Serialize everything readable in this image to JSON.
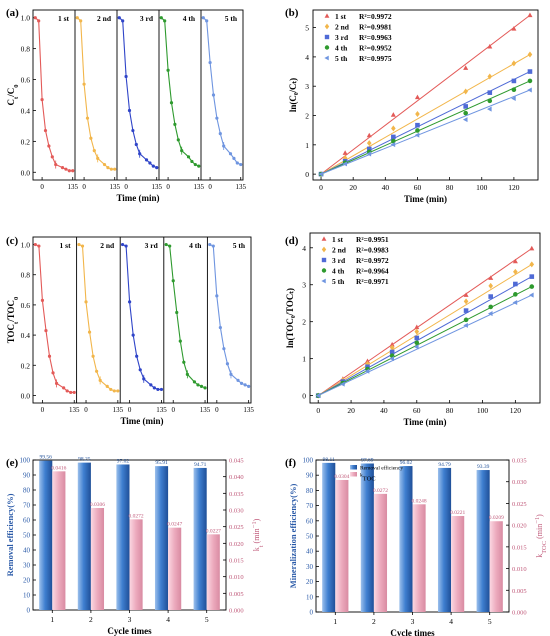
{
  "chart_data": [
    {
      "id": "a",
      "type": "line",
      "panel_label": "(a)",
      "ylabel_parts": [
        "C",
        "t",
        "/C",
        "0"
      ],
      "xlabel": "Time (min)",
      "ylim": [
        -0.05,
        1.05
      ],
      "yticks": [
        "0.0",
        "0.2",
        "0.4",
        "0.6",
        "0.8",
        "1.0"
      ],
      "yticks_vals": [
        0,
        0.2,
        0.4,
        0.6,
        0.8,
        1.0
      ],
      "segment_xticks": [
        "0",
        "135"
      ],
      "x": [
        -30,
        -15,
        0,
        15,
        30,
        45,
        60,
        90,
        105,
        120,
        135
      ],
      "series": [
        {
          "name": "1 st",
          "color": "#e35a58",
          "values": [
            1.0,
            0.98,
            0.47,
            0.27,
            0.17,
            0.1,
            0.05,
            0.03,
            0.02,
            0.01,
            0.01
          ]
        },
        {
          "name": "2 nd",
          "color": "#f2b64b",
          "values": [
            1.0,
            0.98,
            0.57,
            0.35,
            0.22,
            0.14,
            0.09,
            0.05,
            0.03,
            0.02,
            0.02
          ]
        },
        {
          "name": "3 rd",
          "color": "#2f44c8",
          "values": [
            1.0,
            0.98,
            0.62,
            0.4,
            0.27,
            0.18,
            0.12,
            0.08,
            0.06,
            0.04,
            0.03
          ]
        },
        {
          "name": "4 th",
          "color": "#2e9a2e",
          "values": [
            1.0,
            0.98,
            0.66,
            0.45,
            0.31,
            0.21,
            0.14,
            0.1,
            0.07,
            0.05,
            0.04
          ]
        },
        {
          "name": "5 th",
          "color": "#6f95e0",
          "values": [
            1.0,
            0.98,
            0.71,
            0.5,
            0.35,
            0.25,
            0.17,
            0.12,
            0.09,
            0.06,
            0.05
          ]
        }
      ]
    },
    {
      "id": "b",
      "type": "scatter",
      "panel_label": "(b)",
      "ylabel": "ln(C₀/Cₜ)",
      "xlabel": "Time (min)",
      "xlim": [
        -5,
        135
      ],
      "ylim": [
        -0.2,
        5.6
      ],
      "xticks": [
        0,
        20,
        40,
        60,
        80,
        100,
        120
      ],
      "yticks": [
        0,
        1,
        2,
        3,
        4,
        5
      ],
      "x": [
        0,
        15,
        30,
        45,
        60,
        90,
        105,
        120,
        130
      ],
      "legend_position": "top-left",
      "series": [
        {
          "name": "1 st",
          "r2": "R²=0.9972",
          "color": "#e35a58",
          "marker": "triangle-up",
          "values": [
            0,
            0.72,
            1.32,
            2.02,
            2.62,
            3.62,
            4.35,
            4.96,
            5.42
          ]
        },
        {
          "name": "2 nd",
          "r2": "R²=0.9981",
          "color": "#f2b64b",
          "marker": "diamond",
          "values": [
            0,
            0.55,
            1.06,
            1.56,
            2.05,
            2.82,
            3.33,
            3.78,
            4.08
          ]
        },
        {
          "name": "3 rd",
          "r2": "R²=0.9963",
          "color": "#4f6ad6",
          "marker": "square",
          "values": [
            0,
            0.44,
            0.86,
            1.27,
            1.67,
            2.31,
            2.78,
            3.18,
            3.5
          ]
        },
        {
          "name": "4 th",
          "r2": "R²=0.9952",
          "color": "#2e9a2e",
          "marker": "circle",
          "values": [
            0,
            0.39,
            0.76,
            1.13,
            1.49,
            2.08,
            2.5,
            2.88,
            3.18
          ]
        },
        {
          "name": "5 th",
          "r2": "R²=0.9975",
          "color": "#6f95e0",
          "marker": "triangle-left",
          "values": [
            0,
            0.35,
            0.69,
            1.01,
            1.33,
            1.86,
            2.22,
            2.58,
            2.87
          ]
        }
      ]
    },
    {
      "id": "c",
      "type": "line",
      "panel_label": "(c)",
      "ylabel_parts": [
        "TOC",
        "t",
        "/TOC",
        "0"
      ],
      "xlabel": "Time (min)",
      "ylim": [
        -0.05,
        1.05
      ],
      "yticks": [
        "0.0",
        "0.2",
        "0.4",
        "0.6",
        "0.8",
        "1.0"
      ],
      "yticks_vals": [
        0,
        0.2,
        0.4,
        0.6,
        0.8,
        1.0
      ],
      "segment_xticks": [
        "0",
        "135"
      ],
      "x": [
        -30,
        -15,
        0,
        15,
        30,
        45,
        60,
        90,
        105,
        120,
        135
      ],
      "series": [
        {
          "name": "1 st",
          "color": "#e35a58",
          "values": [
            1.0,
            0.99,
            0.63,
            0.43,
            0.26,
            0.15,
            0.08,
            0.05,
            0.03,
            0.02,
            0.02
          ]
        },
        {
          "name": "2 nd",
          "color": "#f2b64b",
          "values": [
            1.0,
            0.99,
            0.62,
            0.42,
            0.26,
            0.16,
            0.1,
            0.06,
            0.04,
            0.03,
            0.03
          ]
        },
        {
          "name": "3 rd",
          "color": "#2f44c8",
          "values": [
            1.0,
            0.99,
            0.62,
            0.4,
            0.26,
            0.17,
            0.11,
            0.07,
            0.05,
            0.04,
            0.04
          ]
        },
        {
          "name": "4 th",
          "color": "#2e9a2e",
          "values": [
            1.0,
            0.99,
            0.76,
            0.55,
            0.36,
            0.22,
            0.14,
            0.09,
            0.07,
            0.06,
            0.05
          ]
        },
        {
          "name": "5 th",
          "color": "#6f95e0",
          "values": [
            1.0,
            0.99,
            0.66,
            0.45,
            0.31,
            0.21,
            0.14,
            0.1,
            0.08,
            0.07,
            0.06
          ]
        }
      ]
    },
    {
      "id": "d",
      "type": "scatter",
      "panel_label": "(d)",
      "ylabel": "ln(TOC₀/TOCₜ)",
      "xlabel": "Time (min)",
      "xlim": [
        -5,
        135
      ],
      "ylim": [
        -0.2,
        4.4
      ],
      "xticks": [
        0,
        20,
        40,
        60,
        80,
        100,
        120
      ],
      "yticks": [
        0,
        1,
        2,
        3,
        4
      ],
      "x": [
        0,
        15,
        30,
        45,
        60,
        90,
        105,
        120,
        130
      ],
      "legend_position": "top-left",
      "series": [
        {
          "name": "1 st",
          "r2": "R²=0.9951",
          "color": "#e35a58",
          "marker": "triangle-up",
          "values": [
            0,
            0.45,
            0.93,
            1.38,
            1.85,
            2.72,
            3.18,
            3.63,
            3.98
          ]
        },
        {
          "name": "2 nd",
          "r2": "R²=0.9983",
          "color": "#f2b64b",
          "marker": "diamond",
          "values": [
            0,
            0.42,
            0.86,
            1.3,
            1.73,
            2.55,
            2.97,
            3.35,
            3.55
          ]
        },
        {
          "name": "3 rd",
          "r2": "R²=0.9972",
          "color": "#4f6ad6",
          "marker": "square",
          "values": [
            0,
            0.38,
            0.78,
            1.18,
            1.56,
            2.3,
            2.68,
            3.02,
            3.22
          ]
        },
        {
          "name": "4 th",
          "r2": "R²=0.9964",
          "color": "#2e9a2e",
          "marker": "circle",
          "values": [
            0,
            0.34,
            0.72,
            1.08,
            1.43,
            2.05,
            2.4,
            2.74,
            2.95
          ]
        },
        {
          "name": "5 th",
          "r2": "R²=0.9971",
          "color": "#6f95e0",
          "marker": "triangle-left",
          "values": [
            0,
            0.31,
            0.66,
            1.0,
            1.32,
            1.9,
            2.22,
            2.52,
            2.72
          ]
        }
      ]
    },
    {
      "id": "e",
      "type": "bar",
      "panel_label": "(e)",
      "xlabel": "Cycle times",
      "ylabel": "Removal efficiency(%)",
      "ylabel_right_parts": [
        "k",
        "t",
        " (min",
        "−1",
        ")"
      ],
      "categories": [
        "1",
        "2",
        "3",
        "4",
        "5"
      ],
      "ylim": [
        0,
        100
      ],
      "yticks": [
        0,
        10,
        20,
        30,
        40,
        50,
        60,
        70,
        80,
        90,
        100
      ],
      "ylim_right": [
        0,
        0.045
      ],
      "yticks_right": [
        "0.000",
        "0.005",
        "0.010",
        "0.015",
        "0.020",
        "0.025",
        "0.030",
        "0.035",
        "0.040",
        "0.045"
      ],
      "series": [
        {
          "axis": "left",
          "color": "#4a82c8",
          "values": [
            99.56,
            98.25,
            97.02,
            95.91,
            94.71
          ],
          "labels": [
            "99.56",
            "98.25",
            "97.02",
            "95.91",
            "94.71"
          ]
        },
        {
          "axis": "right",
          "color": "#e8a6b8",
          "values": [
            0.0416,
            0.0306,
            0.0272,
            0.0247,
            0.0227
          ],
          "labels": [
            "0.0416",
            "0.0306",
            "0.0272",
            "0.0247",
            "0.0227"
          ]
        }
      ]
    },
    {
      "id": "f",
      "type": "bar",
      "panel_label": "(f)",
      "xlabel": "Cycle times",
      "ylabel": "Mineralization efficiency(%)",
      "ylabel_right_parts": [
        "k",
        "TOC",
        " (min",
        "−1",
        ")"
      ],
      "categories": [
        "1",
        "2",
        "3",
        "4",
        "5"
      ],
      "ylim": [
        0,
        100
      ],
      "yticks": [
        0,
        10,
        20,
        30,
        40,
        50,
        60,
        70,
        80,
        90,
        100
      ],
      "ylim_right": [
        0,
        0.035
      ],
      "yticks_right": [
        "0.000",
        "0.005",
        "0.010",
        "0.015",
        "0.020",
        "0.025",
        "0.030",
        "0.035"
      ],
      "legend": [
        "Removal efficiency",
        "k"
      ],
      "legend_sub": [
        "",
        "TOC"
      ],
      "legend_position": "top-center",
      "series": [
        {
          "axis": "left",
          "color": "#4a82c8",
          "values": [
            98.11,
            97.69,
            96.02,
            94.79,
            93.39
          ],
          "labels": [
            "98.11",
            "97.69",
            "96.02",
            "94.79",
            "93.39"
          ]
        },
        {
          "axis": "right",
          "color": "#e8a6b8",
          "values": [
            0.0304,
            0.0272,
            0.0248,
            0.0221,
            0.0209
          ],
          "labels": [
            "0.0304",
            "0.0272",
            "0.0248",
            "0.0221",
            "0.0209"
          ]
        }
      ]
    }
  ]
}
